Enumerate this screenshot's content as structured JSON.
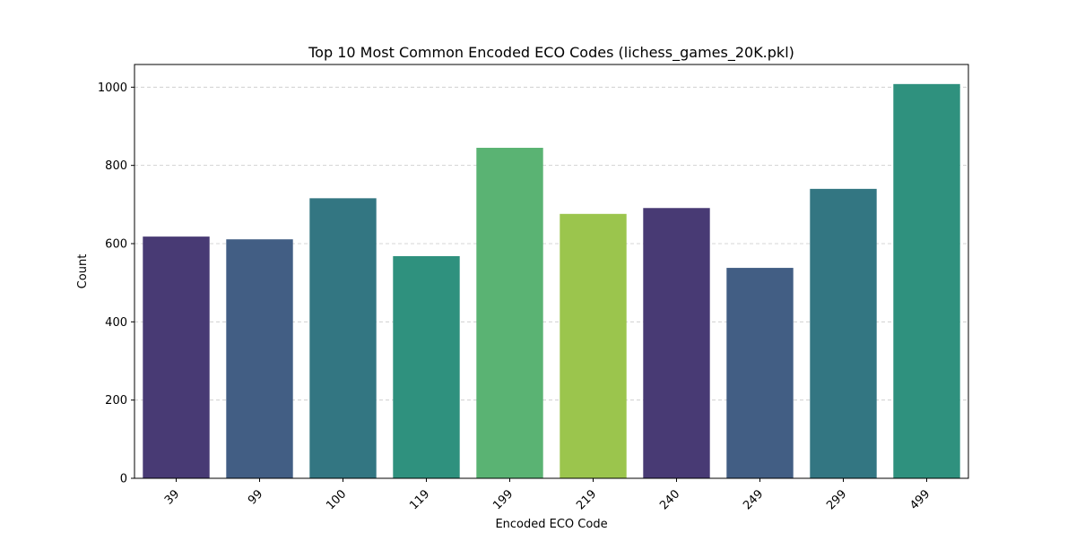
{
  "chart_data": {
    "type": "bar",
    "title": "Top 10 Most Common Encoded ECO Codes (lichess_games_20K.pkl)",
    "xlabel": "Encoded ECO Code",
    "ylabel": "Count",
    "categories": [
      "39",
      "99",
      "100",
      "119",
      "199",
      "219",
      "240",
      "249",
      "299",
      "499"
    ],
    "values": [
      618,
      611,
      716,
      568,
      845,
      676,
      691,
      538,
      740,
      1008
    ],
    "colors": [
      "#483a74",
      "#425e84",
      "#337682",
      "#2f917e",
      "#5ab373",
      "#9bc54d",
      "#483a74",
      "#425e84",
      "#337682",
      "#2f917e"
    ],
    "ylim": [
      0,
      1058
    ],
    "yticks": [
      0,
      200,
      400,
      600,
      800,
      1000
    ],
    "grid": "y-dashed",
    "legend": "none"
  }
}
